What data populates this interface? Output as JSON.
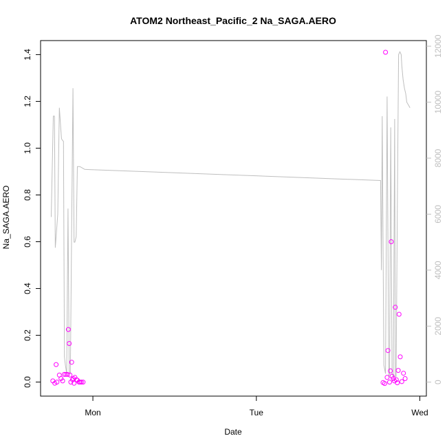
{
  "chart_data": {
    "type": "scatter",
    "title": "ATOM2 Northeast_Pacific_2 Na_SAGA.AERO",
    "xlabel": "Date",
    "ylabel": "Na_SAGA.AERO",
    "x_ticks": [
      {
        "value": 1.0,
        "label": "Mon"
      },
      {
        "value": 2.0,
        "label": "Tue"
      },
      {
        "value": 3.0,
        "label": "Wed"
      }
    ],
    "xlim": [
      0.68,
      3.04
    ],
    "ylim": [
      -0.06,
      1.46
    ],
    "y_ticks": [
      0.0,
      0.2,
      0.4,
      0.6,
      0.8,
      1.0,
      1.2,
      1.4
    ],
    "y_tick_labels": [
      "0.0",
      "0.2",
      "0.4",
      "0.6",
      "0.8",
      "1.0",
      "1.2",
      "1.4"
    ],
    "y2lim": [
      -500,
      12200
    ],
    "y2_ticks": [
      0,
      2000,
      4000,
      6000,
      8000,
      10000,
      12000
    ],
    "y2_tick_labels": [
      "0",
      "2000",
      "4000",
      "6000",
      "8000",
      "10000",
      "12000"
    ],
    "colors": {
      "points": "#ff00ff",
      "altitude_line": "#bebebe",
      "axis": "#000000",
      "right_axis": "#bebebe"
    },
    "series": [
      {
        "kind": "points",
        "axis": "left",
        "x": [
          0.755,
          0.767,
          0.775,
          0.78,
          0.795,
          0.805,
          0.815,
          0.825,
          0.835,
          0.845,
          0.85,
          0.855,
          0.86,
          0.865,
          0.87,
          0.875,
          0.88,
          0.885,
          0.89,
          0.9,
          0.905,
          0.915,
          0.922,
          0.93,
          0.94,
          2.775,
          2.785,
          2.79,
          2.8,
          2.805,
          2.815,
          2.82,
          2.825,
          2.83,
          2.838,
          2.845,
          2.85,
          2.856,
          2.862,
          2.868,
          2.873,
          2.88,
          2.89,
          2.9,
          2.91
        ],
        "y": [
          0.005,
          -0.005,
          0.075,
          0.0,
          0.03,
          0.015,
          0.005,
          0.033,
          0.033,
          0.033,
          0.225,
          0.165,
          0.03,
          0.0,
          0.085,
          0.01,
          0.015,
          -0.005,
          0.02,
          0.01,
          0.008,
          0.0,
          0.0,
          0.0,
          0.0,
          -0.002,
          -0.006,
          1.41,
          0.02,
          0.135,
          0.0,
          0.048,
          0.6,
          0.025,
          0.015,
          0.005,
          0.32,
          0.01,
          -0.003,
          0.05,
          0.29,
          0.108,
          0.002,
          0.038,
          0.015
        ]
      },
      {
        "kind": "line",
        "axis": "right",
        "x": [
          0.745,
          0.758,
          0.765,
          0.77,
          0.785,
          0.795,
          0.808,
          0.812,
          0.82,
          0.826,
          0.832,
          0.84,
          0.848,
          0.855,
          0.862,
          0.87,
          0.878,
          0.885,
          0.89,
          0.898,
          0.905,
          0.92,
          0.935,
          0.95,
          2.76,
          2.765,
          2.77,
          2.78,
          2.79,
          2.8,
          2.81,
          2.815,
          2.822,
          2.83,
          2.838,
          2.846,
          2.85,
          2.855,
          2.862,
          2.87,
          2.878,
          2.886,
          2.89,
          2.898,
          2.906,
          2.914,
          2.92,
          2.93,
          2.94
        ],
        "y": [
          5900,
          9500,
          9500,
          4800,
          6000,
          9800,
          8700,
          8650,
          8600,
          900,
          600,
          300,
          6200,
          400,
          300,
          5500,
          10500,
          5000,
          5000,
          5200,
          7700,
          7700,
          7650,
          7600,
          7200,
          4000,
          9500,
          600,
          300,
          10200,
          200,
          300,
          9100,
          300,
          200,
          9400,
          200,
          200,
          6000,
          11700,
          11800,
          11700,
          11300,
          10800,
          10500,
          10300,
          10000,
          9900,
          9800
        ]
      }
    ]
  }
}
